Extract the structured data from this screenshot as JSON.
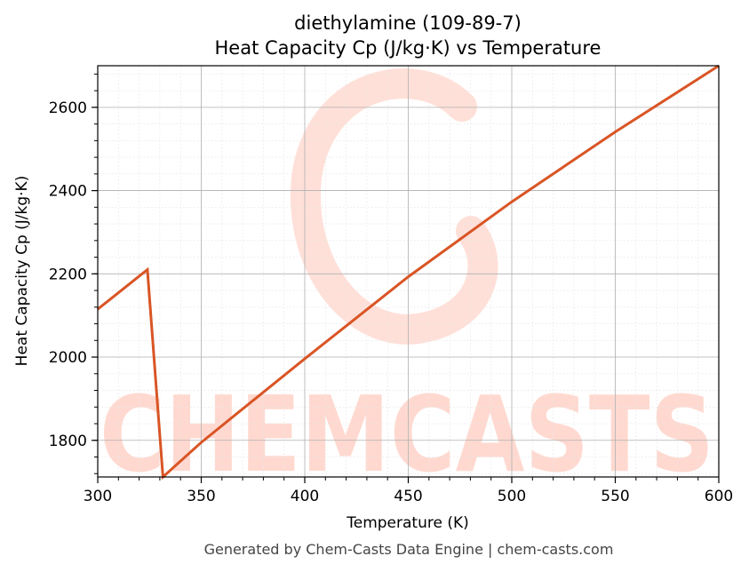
{
  "chart_data": {
    "type": "line",
    "title": "diethylamine (109-89-7)",
    "subtitle": "Heat Capacity Cp (J/kg·K) vs Temperature",
    "xlabel": "Temperature (K)",
    "ylabel": "Heat Capacity Cp (J/kg·K)",
    "xlim": [
      300,
      600
    ],
    "ylim": [
      1712,
      2700
    ],
    "xticks": [
      300,
      350,
      400,
      450,
      500,
      550,
      600
    ],
    "yticks": [
      1800,
      2000,
      2200,
      2400,
      2600
    ],
    "grid": true,
    "line_color": "#d95525",
    "series": [
      {
        "x": [
          300,
          324,
          331.5,
          350,
          400,
          450,
          500,
          550,
          600
        ],
        "y": [
          2115,
          2210,
          1712,
          1795,
          1996,
          2193,
          2373,
          2541,
          2700
        ]
      }
    ]
  },
  "watermark": "CHEMCASTS",
  "footer": "Generated by Chem-Casts Data Engine | chem-casts.com"
}
